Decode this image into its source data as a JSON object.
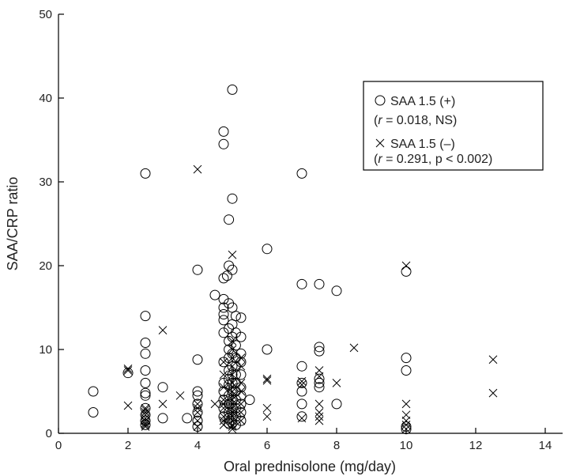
{
  "chart_data": {
    "type": "scatter",
    "title": "",
    "xlabel": "Oral prednisolone (mg/day)",
    "ylabel": "SAA/CRP ratio",
    "xlim": [
      0,
      15
    ],
    "ylim": [
      0,
      50
    ],
    "xticks": [
      0,
      2,
      4,
      6,
      8,
      10,
      12,
      14
    ],
    "yticks": [
      0,
      10,
      20,
      30,
      40,
      50
    ],
    "grid": false,
    "legend_position": "top-right",
    "legend": {
      "entries": [
        {
          "text": "SAA 1.5 (+)",
          "sub_r": "r",
          "sub_rest": " = 0.018, NS"
        },
        {
          "text": "SAA 1.5 (–)",
          "sub_r": "r",
          "sub_rest": " = 0.291, p < 0.002"
        }
      ]
    },
    "series": [
      {
        "name": "SAA 1.5 (+)",
        "marker": "circle",
        "x": [
          1,
          1,
          2,
          2.5,
          2.5,
          2.5,
          2.5,
          2.5,
          2.5,
          2.5,
          2.5,
          2.5,
          2.5,
          2.5,
          2.5,
          3,
          3,
          3.7,
          4,
          4,
          4,
          4,
          4,
          4,
          4,
          4,
          4.5,
          4.75,
          4.75,
          4.75,
          4.75,
          4.75,
          4.75,
          4.75,
          4.75,
          4.75,
          4.75,
          4.75,
          4.75,
          4.75,
          4.75,
          4.85,
          4.9,
          4.9,
          4.9,
          4.9,
          4.9,
          4.9,
          4.9,
          4.9,
          4.9,
          4.9,
          4.9,
          4.9,
          4.9,
          4.9,
          4.9,
          5,
          5,
          5,
          5,
          5,
          5,
          5,
          5,
          5,
          5,
          5,
          5,
          5,
          5,
          5,
          5,
          5.1,
          5.1,
          5.1,
          5.1,
          5.1,
          5.1,
          5.1,
          5.1,
          5.1,
          5.1,
          5.1,
          5.1,
          5.25,
          5.25,
          5.25,
          5.25,
          5.25,
          5.25,
          5.25,
          5.25,
          5.25,
          5.25,
          5.5,
          6,
          6,
          7,
          7,
          7,
          7,
          7,
          7,
          7,
          7.5,
          7.5,
          7.5,
          7.5,
          7.5,
          7.5,
          8,
          8,
          10,
          10,
          10,
          10,
          10
        ],
        "y": [
          5,
          2.5,
          7.2,
          31,
          14,
          10.8,
          9.5,
          7.5,
          6,
          4.8,
          4.5,
          3,
          2.2,
          1.5,
          1,
          5.5,
          1.8,
          1.8,
          19.5,
          8.8,
          5,
          4.5,
          3.5,
          2.5,
          1.5,
          0.8,
          16.5,
          36,
          34.5,
          18.5,
          16,
          15,
          14.2,
          13.5,
          12,
          8.5,
          6,
          5,
          4,
          3,
          2,
          18.8,
          25.5,
          20,
          15.5,
          12.5,
          11,
          10,
          9,
          7.5,
          6.5,
          5.8,
          4.5,
          3.5,
          2.5,
          1.8,
          1.2,
          41,
          28,
          19.5,
          15,
          13,
          11.5,
          9.5,
          8,
          7,
          6,
          5,
          4,
          3,
          2.5,
          2,
          1.2,
          14,
          12,
          10.5,
          9,
          8,
          7,
          6,
          5,
          4,
          3,
          2,
          1,
          13.8,
          11.5,
          9.5,
          8.5,
          7,
          5.5,
          4.5,
          3.5,
          2.5,
          1.5,
          4,
          22,
          10,
          31,
          17.8,
          8,
          6,
          5,
          3.5,
          2,
          17.8,
          10.3,
          9.8,
          6.5,
          6,
          5.5,
          17,
          3.5,
          19.3,
          9,
          7.5,
          0.8,
          0.5
        ]
      },
      {
        "name": "SAA 1.5 (–)",
        "marker": "cross",
        "x": [
          2,
          2,
          2,
          2.5,
          2.5,
          2.5,
          2.5,
          2.5,
          2.5,
          2.5,
          2.5,
          2.5,
          3,
          3,
          3.5,
          4,
          4,
          4,
          4,
          4,
          4,
          4.5,
          4.75,
          4.75,
          4.75,
          4.75,
          4.75,
          4.75,
          4.75,
          4.75,
          4.75,
          5,
          5,
          5,
          5,
          5,
          5,
          5,
          5,
          5,
          5,
          5,
          5,
          5,
          5,
          5,
          5,
          5,
          5,
          5,
          5.25,
          5.25,
          5.25,
          5.25,
          5.25,
          5.25,
          5.25,
          6,
          6,
          6,
          6,
          7,
          7,
          7,
          7.5,
          7.5,
          7.5,
          7.5,
          7.5,
          7.5,
          8,
          8.5,
          10,
          10,
          10,
          10,
          10,
          10,
          12.5,
          12.5
        ],
        "y": [
          7.7,
          7.5,
          3.3,
          2.8,
          2.5,
          2.2,
          1.8,
          1.5,
          1.2,
          1,
          0.8,
          3,
          12.3,
          3.5,
          4.5,
          31.5,
          3.5,
          3,
          2.5,
          1.5,
          0.8,
          3.5,
          8.5,
          7,
          5.5,
          4,
          3.5,
          3,
          2,
          1.5,
          1,
          21.3,
          11,
          10,
          9,
          8,
          7,
          6,
          5.5,
          5,
          4.5,
          4,
          3.5,
          3,
          2.5,
          2,
          1.5,
          1,
          0.8,
          0.5,
          9,
          8,
          6,
          5,
          3.5,
          2.5,
          1.5,
          6.5,
          6.3,
          3,
          2,
          6.2,
          5.8,
          1.8,
          7.5,
          6.8,
          3.5,
          2.5,
          2,
          1.5,
          6,
          10.2,
          20,
          3.5,
          2.2,
          1.5,
          1,
          0.5,
          8.8,
          4.8
        ]
      }
    ]
  }
}
